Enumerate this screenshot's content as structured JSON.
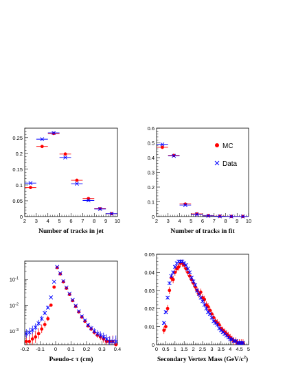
{
  "colors": {
    "mc": "#ff0000",
    "data": "#0000ff"
  },
  "chart_data": [
    {
      "type": "scatter",
      "xlabel": "Number of tracks in jet",
      "xlim": [
        2,
        10
      ],
      "ylim": [
        0,
        0.28
      ],
      "xticks": [
        "2",
        "3",
        "4",
        "5",
        "6",
        "7",
        "8",
        "9",
        "10"
      ],
      "xtick_values": [
        2,
        3,
        4,
        5,
        6,
        7,
        8,
        9,
        10
      ],
      "yticks": [
        "0",
        "0.05",
        "0.1",
        "0.15",
        "0.2",
        "0.25"
      ],
      "ytick_values": [
        0,
        0.05,
        0.1,
        0.15,
        0.2,
        0.25
      ],
      "yscale": "linear",
      "series": [
        {
          "name": "MC",
          "marker": "dot",
          "x": [
            2.5,
            3.5,
            4.5,
            5.5,
            6.5,
            7.5,
            8.5,
            9.5
          ],
          "xerr": 0.5,
          "y": [
            0.092,
            0.222,
            0.263,
            0.198,
            0.115,
            0.057,
            0.025,
            0.009
          ]
        },
        {
          "name": "Data",
          "marker": "cross",
          "x": [
            2.5,
            3.5,
            4.5,
            5.5,
            6.5,
            7.5,
            8.5,
            9.5
          ],
          "xerr": 0.5,
          "y": [
            0.106,
            0.245,
            0.265,
            0.187,
            0.104,
            0.051,
            0.024,
            0.009
          ]
        }
      ]
    },
    {
      "type": "scatter",
      "xlabel": "Number of tracks in fit",
      "xlim": [
        2,
        10
      ],
      "ylim": [
        0,
        0.6
      ],
      "xticks": [
        "2",
        "3",
        "4",
        "5",
        "6",
        "7",
        "8",
        "9",
        "10"
      ],
      "xtick_values": [
        2,
        3,
        4,
        5,
        6,
        7,
        8,
        9,
        10
      ],
      "yticks": [
        "0",
        "0.1",
        "0.2",
        "0.3",
        "0.4",
        "0.5",
        "0.6"
      ],
      "ytick_values": [
        0,
        0.1,
        0.2,
        0.3,
        0.4,
        0.5,
        0.6
      ],
      "yscale": "linear",
      "legend": {
        "placement": "top-right",
        "entries": [
          "MC",
          "Data"
        ]
      },
      "series": [
        {
          "name": "MC",
          "marker": "dot",
          "x": [
            2.5,
            3.5,
            4.5,
            5.5,
            6.5,
            7.5,
            8.5,
            9.5
          ],
          "xerr": 0.5,
          "y": [
            0.47,
            0.415,
            0.085,
            0.018,
            0.006,
            0.003,
            0.001,
            0.001
          ]
        },
        {
          "name": "Data",
          "marker": "cross",
          "x": [
            2.5,
            3.5,
            4.5,
            5.5,
            6.5,
            7.5,
            8.5,
            9.5
          ],
          "xerr": 0.5,
          "y": [
            0.49,
            0.412,
            0.078,
            0.015,
            0.005,
            0.002,
            0.001,
            0.0005
          ]
        }
      ]
    },
    {
      "type": "scatter",
      "xlabel": "Pseudo-c τ (cm)",
      "xlim": [
        -0.2,
        0.4
      ],
      "ylim": [
        0.0003,
        0.5
      ],
      "xticks": [
        "-0.2",
        "-0.1",
        "0",
        "0.1",
        "0.2",
        "0.3",
        "0.4"
      ],
      "xtick_values": [
        -0.2,
        -0.1,
        0,
        0.1,
        0.2,
        0.3,
        0.4
      ],
      "yticks": [
        "10^-3",
        "10^-2",
        "10^-1"
      ],
      "ytick_values": [
        0.001,
        0.01,
        0.1
      ],
      "yscale": "log",
      "series": [
        {
          "name": "MC",
          "marker": "dot",
          "x": [
            -0.19,
            -0.17,
            -0.15,
            -0.13,
            -0.11,
            -0.09,
            -0.07,
            -0.05,
            -0.03,
            -0.01,
            0.01,
            0.03,
            0.05,
            0.07,
            0.09,
            0.11,
            0.13,
            0.15,
            0.17,
            0.19,
            0.21,
            0.23,
            0.25,
            0.27,
            0.29,
            0.31,
            0.33,
            0.35,
            0.37,
            0.39
          ],
          "y": [
            0.0004,
            0.0004,
            0.0005,
            0.0006,
            0.0008,
            0.0012,
            0.0018,
            0.003,
            0.01,
            0.05,
            0.28,
            0.16,
            0.08,
            0.045,
            0.026,
            0.015,
            0.009,
            0.0055,
            0.0035,
            0.0024,
            0.0016,
            0.0012,
            0.0009,
            0.0007,
            0.0006,
            0.0005,
            0.0004,
            0.0004,
            0.0004,
            0.0003
          ],
          "yerr_frac": [
            0.9,
            0.9,
            0.8,
            0.7,
            0.6,
            0.5,
            0.4,
            0.3,
            0.12,
            0.04,
            0.02,
            0.02,
            0.03,
            0.04,
            0.05,
            0.06,
            0.08,
            0.1,
            0.12,
            0.15,
            0.2,
            0.25,
            0.3,
            0.35,
            0.4,
            0.45,
            0.5,
            0.6,
            0.7,
            0.8
          ]
        },
        {
          "name": "Data",
          "marker": "cross",
          "x": [
            -0.19,
            -0.17,
            -0.15,
            -0.13,
            -0.11,
            -0.09,
            -0.07,
            -0.05,
            -0.03,
            -0.01,
            0.01,
            0.03,
            0.05,
            0.07,
            0.09,
            0.11,
            0.13,
            0.15,
            0.17,
            0.19,
            0.21,
            0.23,
            0.25,
            0.27,
            0.29,
            0.31,
            0.33,
            0.35,
            0.37,
            0.39
          ],
          "y": [
            0.0008,
            0.0009,
            0.0011,
            0.0014,
            0.002,
            0.003,
            0.005,
            0.008,
            0.02,
            0.08,
            0.3,
            0.17,
            0.085,
            0.048,
            0.028,
            0.016,
            0.0095,
            0.0058,
            0.0037,
            0.0026,
            0.0017,
            0.0013,
            0.001,
            0.0008,
            0.0007,
            0.0006,
            0.0005,
            0.0004,
            0.0004,
            0.0004
          ],
          "yerr_frac": [
            0.5,
            0.5,
            0.45,
            0.4,
            0.35,
            0.3,
            0.25,
            0.2,
            0.1,
            0.04,
            0.02,
            0.02,
            0.03,
            0.04,
            0.05,
            0.06,
            0.08,
            0.1,
            0.12,
            0.15,
            0.2,
            0.25,
            0.3,
            0.35,
            0.4,
            0.45,
            0.5,
            0.55,
            0.6,
            0.7
          ]
        }
      ]
    },
    {
      "type": "scatter",
      "xlabel": "Secondary Vertex Mass (GeV/c",
      "xlabel_sup": "2",
      "xlabel_tail": ")",
      "xlim": [
        0,
        5
      ],
      "ylim": [
        0,
        0.05
      ],
      "xticks": [
        "0",
        "0.5",
        "1",
        "1.5",
        "2",
        "2.5",
        "3",
        "3.5",
        "4",
        "4.5",
        "5"
      ],
      "xtick_values": [
        0,
        0.5,
        1,
        1.5,
        2,
        2.5,
        3,
        3.5,
        4,
        4.5,
        5
      ],
      "yticks": [
        "0",
        "0.01",
        "0.02",
        "0.03",
        "0.04",
        "0.05"
      ],
      "ytick_values": [
        0,
        0.01,
        0.02,
        0.03,
        0.04,
        0.05
      ],
      "yscale": "linear",
      "series": [
        {
          "name": "MC",
          "marker": "dot",
          "x": [
            0.4,
            0.5,
            0.6,
            0.7,
            0.8,
            0.9,
            1.0,
            1.1,
            1.2,
            1.3,
            1.4,
            1.5,
            1.6,
            1.7,
            1.8,
            1.9,
            2.0,
            2.1,
            2.2,
            2.3,
            2.4,
            2.5,
            2.6,
            2.7,
            2.8,
            2.9,
            3.0,
            3.1,
            3.2,
            3.3,
            3.4,
            3.5,
            3.6,
            3.7,
            3.8,
            3.9,
            4.0,
            4.1,
            4.2,
            4.3,
            4.4,
            4.5,
            4.6,
            4.7
          ],
          "y": [
            0.008,
            0.01,
            0.02,
            0.03,
            0.037,
            0.036,
            0.04,
            0.042,
            0.043,
            0.045,
            0.045,
            0.044,
            0.042,
            0.04,
            0.038,
            0.036,
            0.034,
            0.032,
            0.03,
            0.028,
            0.029,
            0.026,
            0.025,
            0.022,
            0.021,
            0.019,
            0.017,
            0.015,
            0.013,
            0.012,
            0.011,
            0.009,
            0.008,
            0.007,
            0.006,
            0.005,
            0.004,
            0.003,
            0.002,
            0.002,
            0.001,
            0.001,
            0.001,
            0.001
          ],
          "yerr": 0.002
        },
        {
          "name": "Data",
          "marker": "cross",
          "x": [
            0.4,
            0.5,
            0.6,
            0.7,
            0.8,
            0.9,
            1.0,
            1.1,
            1.2,
            1.3,
            1.4,
            1.5,
            1.6,
            1.7,
            1.8,
            1.9,
            2.0,
            2.1,
            2.2,
            2.3,
            2.4,
            2.5,
            2.6,
            2.7,
            2.8,
            2.9,
            3.0,
            3.1,
            3.2,
            3.3,
            3.4,
            3.5,
            3.6,
            3.7,
            3.8,
            3.9,
            4.0,
            4.1,
            4.2,
            4.3,
            4.4,
            4.5,
            4.6,
            4.7
          ],
          "y": [
            0.012,
            0.018,
            0.026,
            0.034,
            0.038,
            0.04,
            0.043,
            0.045,
            0.046,
            0.046,
            0.046,
            0.045,
            0.044,
            0.042,
            0.04,
            0.037,
            0.035,
            0.033,
            0.03,
            0.028,
            0.026,
            0.024,
            0.022,
            0.02,
            0.018,
            0.017,
            0.015,
            0.013,
            0.012,
            0.011,
            0.009,
            0.008,
            0.007,
            0.006,
            0.005,
            0.004,
            0.003,
            0.003,
            0.002,
            0.002,
            0.001,
            0.001,
            0.001,
            0.001
          ],
          "yerr": 0.001
        }
      ]
    }
  ]
}
